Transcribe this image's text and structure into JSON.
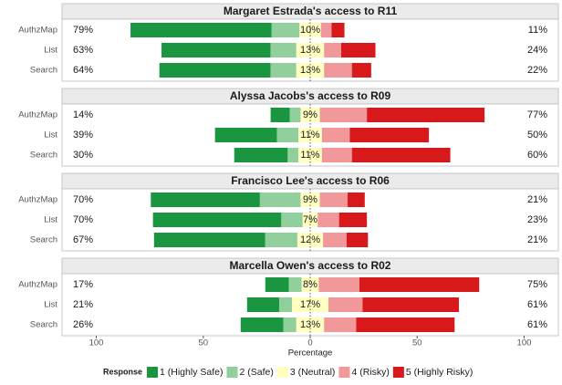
{
  "chart_data": {
    "type": "likert",
    "xlabel": "Percentage",
    "xlim": [
      -116,
      116
    ],
    "xticks": [
      {
        "value": -100,
        "label": "100"
      },
      {
        "value": -50,
        "label": "50"
      },
      0,
      50,
      {
        "value": 100,
        "label": "100"
      }
    ],
    "legend": {
      "title": "Response",
      "items": [
        {
          "name": "1 (Highly Safe)",
          "color": "#1a9641"
        },
        {
          "name": "2 (Safe)",
          "color": "#91cf9c"
        },
        {
          "name": "3 (Neutral)",
          "color": "#ffffbf"
        },
        {
          "name": "4 (Risky)",
          "color": "#f1989b"
        },
        {
          "name": "5 (Highly Risky)",
          "color": "#d7191c"
        }
      ]
    },
    "panels": [
      {
        "title": "Margaret Estrada's access to R11",
        "categories": [
          "AuthzMap",
          "List",
          "Search"
        ],
        "series": [
          {
            "values": [
              66,
              51,
              52
            ]
          },
          {
            "values": [
              13,
              12,
              12
            ]
          },
          {
            "values": [
              10,
              13,
              13
            ],
            "value_labels": [
              "10%",
              "13%",
              "13%"
            ]
          },
          {
            "values": [
              5,
              8,
              13
            ]
          },
          {
            "values": [
              6,
              16,
              9
            ]
          }
        ],
        "left_labels": [
          "79%",
          "63%",
          "64%"
        ],
        "right_labels": [
          "11%",
          "24%",
          "22%"
        ]
      },
      {
        "title": "Alyssa Jacobs's access to R09",
        "categories": [
          "AuthzMap",
          "List",
          "Search"
        ],
        "series": [
          {
            "values": [
              9,
              29,
              25
            ]
          },
          {
            "values": [
              5,
              10,
              5
            ]
          },
          {
            "values": [
              9,
              11,
              11
            ],
            "value_labels": [
              "9%",
              "11%",
              "11%"
            ]
          },
          {
            "values": [
              22,
              13,
              14
            ]
          },
          {
            "values": [
              55,
              37,
              46
            ]
          }
        ],
        "left_labels": [
          "14%",
          "39%",
          "30%"
        ],
        "right_labels": [
          "77%",
          "50%",
          "60%"
        ]
      },
      {
        "title": "Francisco Lee's access to R06",
        "categories": [
          "AuthzMap",
          "List",
          "Search"
        ],
        "series": [
          {
            "values": [
              51,
              60,
              52
            ]
          },
          {
            "values": [
              19,
              10,
              15
            ]
          },
          {
            "values": [
              9,
              7,
              12
            ],
            "value_labels": [
              "9%",
              "7%",
              "12%"
            ]
          },
          {
            "values": [
              13,
              10,
              11
            ]
          },
          {
            "values": [
              8,
              13,
              10
            ]
          }
        ],
        "left_labels": [
          "70%",
          "70%",
          "67%"
        ],
        "right_labels": [
          "21%",
          "23%",
          "21%"
        ]
      },
      {
        "title": "Marcella Owen's access to R02",
        "categories": [
          "AuthzMap",
          "List",
          "Search"
        ],
        "series": [
          {
            "values": [
              11,
              15,
              20
            ]
          },
          {
            "values": [
              6,
              6,
              6
            ]
          },
          {
            "values": [
              8,
              17,
              13
            ],
            "value_labels": [
              "8%",
              "17%",
              "13%"
            ]
          },
          {
            "values": [
              19,
              16,
              15
            ]
          },
          {
            "values": [
              56,
              45,
              46
            ]
          }
        ],
        "left_labels": [
          "17%",
          "21%",
          "26%"
        ],
        "right_labels": [
          "75%",
          "61%",
          "61%"
        ]
      }
    ]
  }
}
